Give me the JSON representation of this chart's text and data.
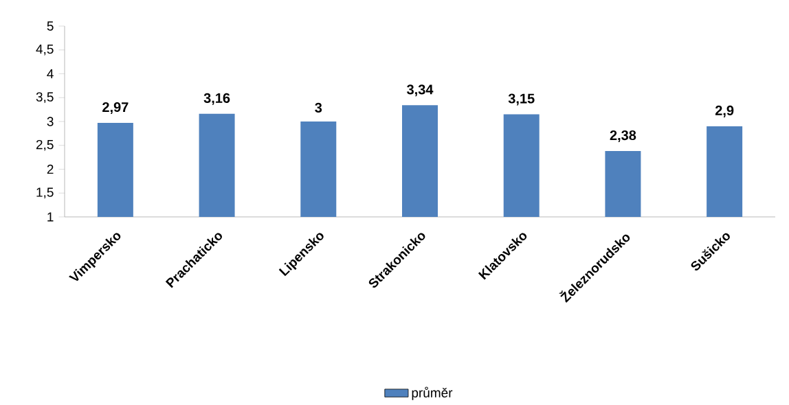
{
  "chart_data": {
    "type": "bar",
    "categories": [
      "Vimpersko",
      "Prachaticko",
      "Lipensko",
      "Strakonicko",
      "Klatovsko",
      "Železnorudsko",
      "Sušicko"
    ],
    "series": [
      {
        "name": "průměr",
        "color": "#4f81bd",
        "values": [
          2.97,
          3.16,
          3.0,
          3.34,
          3.15,
          2.38,
          2.9
        ],
        "value_labels": [
          "2,97",
          "3,16",
          "3",
          "3,34",
          "3,15",
          "2,38",
          "2,9"
        ]
      }
    ],
    "ylim": [
      1,
      5
    ],
    "yticks": [
      1,
      {
        "value": 1.5,
        "label": "1,5"
      },
      2,
      {
        "value": 2.5,
        "label": "2,5"
      },
      3,
      {
        "value": 3.5,
        "label": "3,5"
      },
      4,
      {
        "value": 4.5,
        "label": "4,5"
      },
      5
    ],
    "grid": false,
    "legend": "bottom"
  }
}
